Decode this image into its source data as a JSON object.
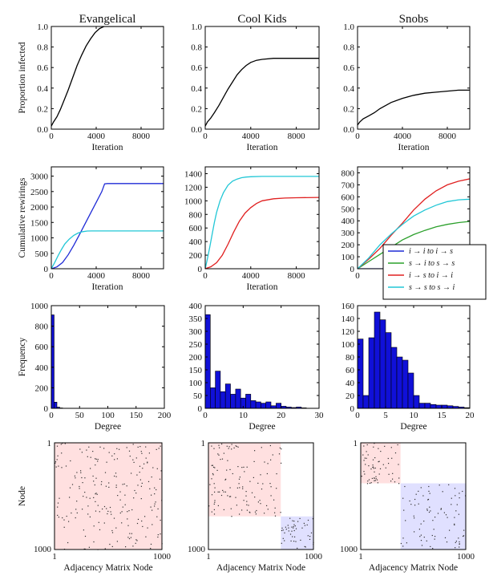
{
  "figure": {
    "column_titles": [
      "Evangelical",
      "Cool Kids",
      "Snobs"
    ]
  },
  "chart_data": [
    {
      "id": "infected-evangelical",
      "type": "line",
      "xlabel": "Iteration",
      "ylabel": "Proportion infected",
      "xlim": [
        0,
        10000
      ],
      "ylim": [
        0,
        1
      ],
      "xticks": [
        0,
        4000,
        8000
      ],
      "yticks": [
        0,
        0.2,
        0.4,
        0.6,
        0.8,
        1.0
      ],
      "xtick_labels": [
        "0",
        "4000",
        "8000"
      ],
      "ytick_labels": [
        "0.0",
        "0.2",
        "0.4",
        "0.6",
        "0.8",
        "1.0"
      ],
      "series": [
        {
          "color": "#000000",
          "x": [
            0,
            200,
            500,
            800,
            1100,
            1500,
            1900,
            2300,
            2700,
            3100,
            3500,
            3900,
            4300,
            4700,
            5000,
            6000,
            8000,
            10000
          ],
          "y": [
            0.03,
            0.07,
            0.12,
            0.19,
            0.27,
            0.38,
            0.5,
            0.62,
            0.72,
            0.81,
            0.88,
            0.94,
            0.98,
            1.0,
            1.0,
            1.0,
            1.0,
            1.0
          ]
        }
      ]
    },
    {
      "id": "infected-coolkids",
      "type": "line",
      "xlabel": "Iteration",
      "ylabel": "",
      "xlim": [
        0,
        10000
      ],
      "ylim": [
        0,
        1
      ],
      "xticks": [
        0,
        4000,
        8000
      ],
      "yticks": [
        0,
        0.2,
        0.4,
        0.6,
        0.8,
        1.0
      ],
      "xtick_labels": [
        "0",
        "4000",
        "8000"
      ],
      "ytick_labels": [
        "0.0",
        "0.2",
        "0.4",
        "0.6",
        "0.8",
        "1.0"
      ],
      "series": [
        {
          "color": "#000000",
          "x": [
            0,
            200,
            500,
            800,
            1200,
            1600,
            2000,
            2400,
            2800,
            3200,
            3600,
            4000,
            4500,
            5000,
            6000,
            7000,
            8000,
            10000
          ],
          "y": [
            0.03,
            0.07,
            0.11,
            0.16,
            0.23,
            0.31,
            0.39,
            0.46,
            0.53,
            0.58,
            0.62,
            0.65,
            0.67,
            0.68,
            0.69,
            0.69,
            0.69,
            0.69
          ]
        }
      ]
    },
    {
      "id": "infected-snobs",
      "type": "line",
      "xlabel": "Iteration",
      "ylabel": "",
      "xlim": [
        0,
        10000
      ],
      "ylim": [
        0,
        1
      ],
      "xticks": [
        0,
        4000,
        8000
      ],
      "yticks": [
        0,
        0.2,
        0.4,
        0.6,
        0.8,
        1.0
      ],
      "xtick_labels": [
        "0",
        "4000",
        "8000"
      ],
      "ytick_labels": [
        "0.0",
        "0.2",
        "0.4",
        "0.6",
        "0.8",
        "1.0"
      ],
      "series": [
        {
          "color": "#000000",
          "x": [
            0,
            200,
            500,
            1000,
            1500,
            2000,
            3000,
            4000,
            5000,
            6000,
            7000,
            8000,
            9000,
            10000
          ],
          "y": [
            0.04,
            0.07,
            0.1,
            0.13,
            0.16,
            0.2,
            0.26,
            0.3,
            0.33,
            0.35,
            0.36,
            0.37,
            0.38,
            0.38
          ]
        }
      ]
    },
    {
      "id": "rewirings-evangelical",
      "type": "line",
      "xlabel": "Iteration",
      "ylabel": "Cumulative rewirings",
      "xlim": [
        0,
        10000
      ],
      "ylim": [
        0,
        3300
      ],
      "xticks": [
        0,
        4000,
        8000
      ],
      "yticks": [
        0,
        500,
        1000,
        1500,
        2000,
        2500,
        3000
      ],
      "xtick_labels": [
        "0",
        "4000",
        "8000"
      ],
      "ytick_labels": [
        "0",
        "500",
        "1000",
        "1500",
        "2000",
        "2500",
        "3000"
      ],
      "series": [
        {
          "color": "#1f2bd6",
          "x": [
            0,
            500,
            1000,
            1500,
            2000,
            2500,
            3000,
            3500,
            4000,
            4500,
            4750,
            5000,
            7000,
            10000
          ],
          "y": [
            0,
            60,
            200,
            450,
            760,
            1100,
            1450,
            1800,
            2150,
            2500,
            2750,
            2760,
            2760,
            2760
          ]
        },
        {
          "color": "#22c7d6",
          "x": [
            0,
            300,
            600,
            900,
            1200,
            1600,
            2000,
            2400,
            2800,
            3200,
            3600,
            4000,
            5000,
            10000
          ],
          "y": [
            0,
            200,
            420,
            620,
            800,
            960,
            1080,
            1160,
            1200,
            1220,
            1225,
            1225,
            1225,
            1225
          ]
        }
      ]
    },
    {
      "id": "rewirings-coolkids",
      "type": "line",
      "xlabel": "Iteration",
      "ylabel": "",
      "xlim": [
        0,
        10000
      ],
      "ylim": [
        0,
        1500
      ],
      "xticks": [
        0,
        4000,
        8000
      ],
      "yticks": [
        0,
        200,
        400,
        600,
        800,
        1000,
        1200,
        1400
      ],
      "xtick_labels": [
        "0",
        "4000",
        "8000"
      ],
      "ytick_labels": [
        "0",
        "200",
        "400",
        "600",
        "800",
        "1000",
        "1200",
        "1400"
      ],
      "series": [
        {
          "color": "#22c7d6",
          "x": [
            0,
            200,
            400,
            600,
            800,
            1000,
            1300,
            1600,
            2000,
            2400,
            2800,
            3200,
            3600,
            4000,
            5000,
            7000,
            10000
          ],
          "y": [
            0,
            150,
            320,
            500,
            680,
            830,
            1000,
            1120,
            1230,
            1290,
            1320,
            1340,
            1350,
            1355,
            1360,
            1360,
            1360
          ]
        },
        {
          "color": "#e02020",
          "x": [
            0,
            500,
            1000,
            1500,
            2000,
            2500,
            3000,
            3500,
            4000,
            4500,
            5000,
            6000,
            7000,
            8000,
            10000
          ],
          "y": [
            0,
            30,
            90,
            200,
            360,
            540,
            700,
            820,
            900,
            960,
            1000,
            1030,
            1040,
            1045,
            1050
          ]
        }
      ]
    },
    {
      "id": "rewirings-snobs",
      "type": "line",
      "xlabel": "",
      "ylabel": "",
      "xlim": [
        0,
        10000
      ],
      "ylim": [
        0,
        850
      ],
      "xticks": [
        0,
        4000,
        8000
      ],
      "yticks": [
        0,
        100,
        200,
        300,
        400,
        500,
        600,
        700,
        800
      ],
      "xtick_labels": [
        "0",
        "4000",
        "8000"
      ],
      "ytick_labels": [
        "0",
        "100",
        "200",
        "300",
        "400",
        "500",
        "600",
        "700",
        "800"
      ],
      "series": [
        {
          "color": "#1f2bd6",
          "label": "i → i  to  i → s",
          "x": [
            0,
            10000
          ],
          "y": [
            0,
            0
          ]
        },
        {
          "color": "#2ca02c",
          "label": "s → i  to  s → s",
          "x": [
            0,
            1000,
            2000,
            3000,
            4000,
            5000,
            6000,
            7000,
            8000,
            9000,
            10000
          ],
          "y": [
            0,
            60,
            120,
            180,
            240,
            285,
            320,
            350,
            370,
            385,
            395
          ]
        },
        {
          "color": "#e02020",
          "label": "i → s  to  i → i",
          "x": [
            0,
            1000,
            2000,
            3000,
            4000,
            5000,
            6000,
            7000,
            8000,
            9000,
            10000
          ],
          "y": [
            0,
            80,
            170,
            280,
            380,
            490,
            580,
            650,
            700,
            730,
            750
          ]
        },
        {
          "color": "#22c7d6",
          "label": "s → s  to  s → i",
          "x": [
            0,
            1000,
            2000,
            3000,
            4000,
            5000,
            6000,
            7000,
            8000,
            9000,
            10000
          ],
          "y": [
            0,
            90,
            200,
            290,
            370,
            440,
            490,
            530,
            560,
            575,
            580
          ]
        }
      ],
      "legend": "lower-right"
    },
    {
      "id": "degree-evangelical",
      "type": "bar",
      "xlabel": "Degree",
      "ylabel": "Frequency",
      "xlim": [
        0,
        200
      ],
      "ylim": [
        0,
        1000
      ],
      "xticks": [
        0,
        50,
        100,
        150,
        200
      ],
      "yticks": [
        0,
        200,
        400,
        600,
        800,
        1000
      ],
      "xtick_labels": [
        "0",
        "50",
        "100",
        "150",
        "200"
      ],
      "ytick_labels": [
        "0",
        "200",
        "400",
        "600",
        "800",
        "1000"
      ],
      "bin_width": 5,
      "bin_starts": [
        0,
        5,
        10,
        15
      ],
      "values": [
        910,
        60,
        12,
        4
      ]
    },
    {
      "id": "degree-coolkids",
      "type": "bar",
      "xlabel": "Degree",
      "ylabel": "",
      "xlim": [
        0,
        30
      ],
      "ylim": [
        0,
        400
      ],
      "xticks": [
        0,
        10,
        20,
        30
      ],
      "yticks": [
        0,
        50,
        100,
        150,
        200,
        250,
        300,
        350,
        400
      ],
      "xtick_labels": [
        "0",
        "10",
        "20",
        "30"
      ],
      "ytick_labels": [
        "0",
        "50",
        "100",
        "150",
        "200",
        "250",
        "300",
        "350",
        "400"
      ],
      "bin_width": 1.33,
      "bin_starts": [
        0,
        1.33,
        2.67,
        4,
        5.33,
        6.67,
        8,
        9.33,
        10.67,
        12,
        13.33,
        14.67,
        16,
        17.33,
        18.67,
        20,
        21.33,
        22.67,
        24,
        25.33
      ],
      "values": [
        365,
        80,
        145,
        65,
        95,
        55,
        75,
        40,
        55,
        30,
        25,
        20,
        25,
        10,
        20,
        8,
        5,
        3,
        5,
        2
      ]
    },
    {
      "id": "degree-snobs",
      "type": "bar",
      "xlabel": "Degree",
      "ylabel": "",
      "xlim": [
        0,
        20
      ],
      "ylim": [
        0,
        160
      ],
      "xticks": [
        0,
        5,
        10,
        15,
        20
      ],
      "yticks": [
        0,
        20,
        40,
        60,
        80,
        100,
        120,
        140,
        160
      ],
      "xtick_labels": [
        "0",
        "5",
        "10",
        "15",
        "20"
      ],
      "ytick_labels": [
        "0",
        "20",
        "40",
        "60",
        "80",
        "100",
        "120",
        "140",
        "160"
      ],
      "bin_width": 1,
      "bin_starts": [
        0,
        1,
        2,
        3,
        4,
        5,
        6,
        7,
        8,
        9,
        10,
        11,
        12,
        13,
        14,
        15,
        16,
        17,
        18,
        19
      ],
      "values": [
        108,
        20,
        110,
        150,
        138,
        118,
        95,
        80,
        75,
        55,
        20,
        8,
        8,
        6,
        5,
        5,
        4,
        3,
        2,
        1
      ]
    },
    {
      "id": "adjacency-evangelical",
      "type": "heatmap",
      "xlabel": "Adjacency Matrix Node",
      "ylabel": "Node",
      "n_nodes": 1000,
      "tick_labels": [
        "1",
        "1000"
      ],
      "blocks": [
        {
          "start": 1,
          "end": 1000,
          "color": "#ffe0e0"
        }
      ],
      "edge_count": 220,
      "seed": 11
    },
    {
      "id": "adjacency-coolkids",
      "type": "heatmap",
      "xlabel": "Adjacency Matrix Node",
      "ylabel": "",
      "n_nodes": 1000,
      "tick_labels": [
        "1",
        "1000"
      ],
      "blocks": [
        {
          "start": 1,
          "end": 690,
          "color": "#ffe0e0"
        },
        {
          "start": 690,
          "end": 1000,
          "color": "#e0e0ff"
        }
      ],
      "edge_count": 180,
      "seed": 23
    },
    {
      "id": "adjacency-snobs",
      "type": "heatmap",
      "xlabel": "Adjacency Matrix Node",
      "ylabel": "",
      "n_nodes": 1000,
      "tick_labels": [
        "1",
        "1000"
      ],
      "blocks": [
        {
          "start": 1,
          "end": 380,
          "color": "#ffe0e0"
        },
        {
          "start": 380,
          "end": 1000,
          "color": "#e0e0ff"
        }
      ],
      "edge_count": 160,
      "seed": 37
    }
  ]
}
